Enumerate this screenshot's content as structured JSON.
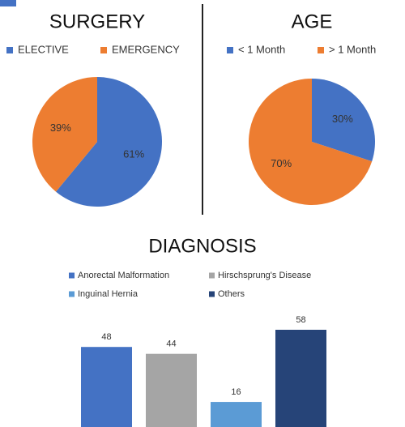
{
  "chart_data": [
    {
      "type": "pie",
      "title": "SURGERY",
      "categories": [
        "ELECTIVE",
        "EMERGENCY"
      ],
      "values": [
        61,
        39
      ],
      "value_labels": [
        "61%",
        "39%"
      ],
      "colors": [
        "#4472c4",
        "#ed7d31"
      ]
    },
    {
      "type": "pie",
      "title": "AGE",
      "categories": [
        "< 1 Month",
        "> 1 Month"
      ],
      "values": [
        30,
        70
      ],
      "value_labels": [
        "30%",
        "70%"
      ],
      "colors": [
        "#4472c4",
        "#ed7d31"
      ]
    },
    {
      "type": "bar",
      "title": "DIAGNOSIS",
      "series": [
        {
          "name": "Anorectal Malformation",
          "color": "#4472c4",
          "values": [
            48
          ]
        },
        {
          "name": "Hirschsprung's Disease",
          "color": "#a5a5a5",
          "values": [
            44
          ]
        },
        {
          "name": "Inguinal Hernia",
          "color": "#5b9bd5",
          "values": [
            16
          ]
        },
        {
          "name": "Others",
          "color": "#264478",
          "values": [
            58
          ]
        }
      ]
    }
  ]
}
